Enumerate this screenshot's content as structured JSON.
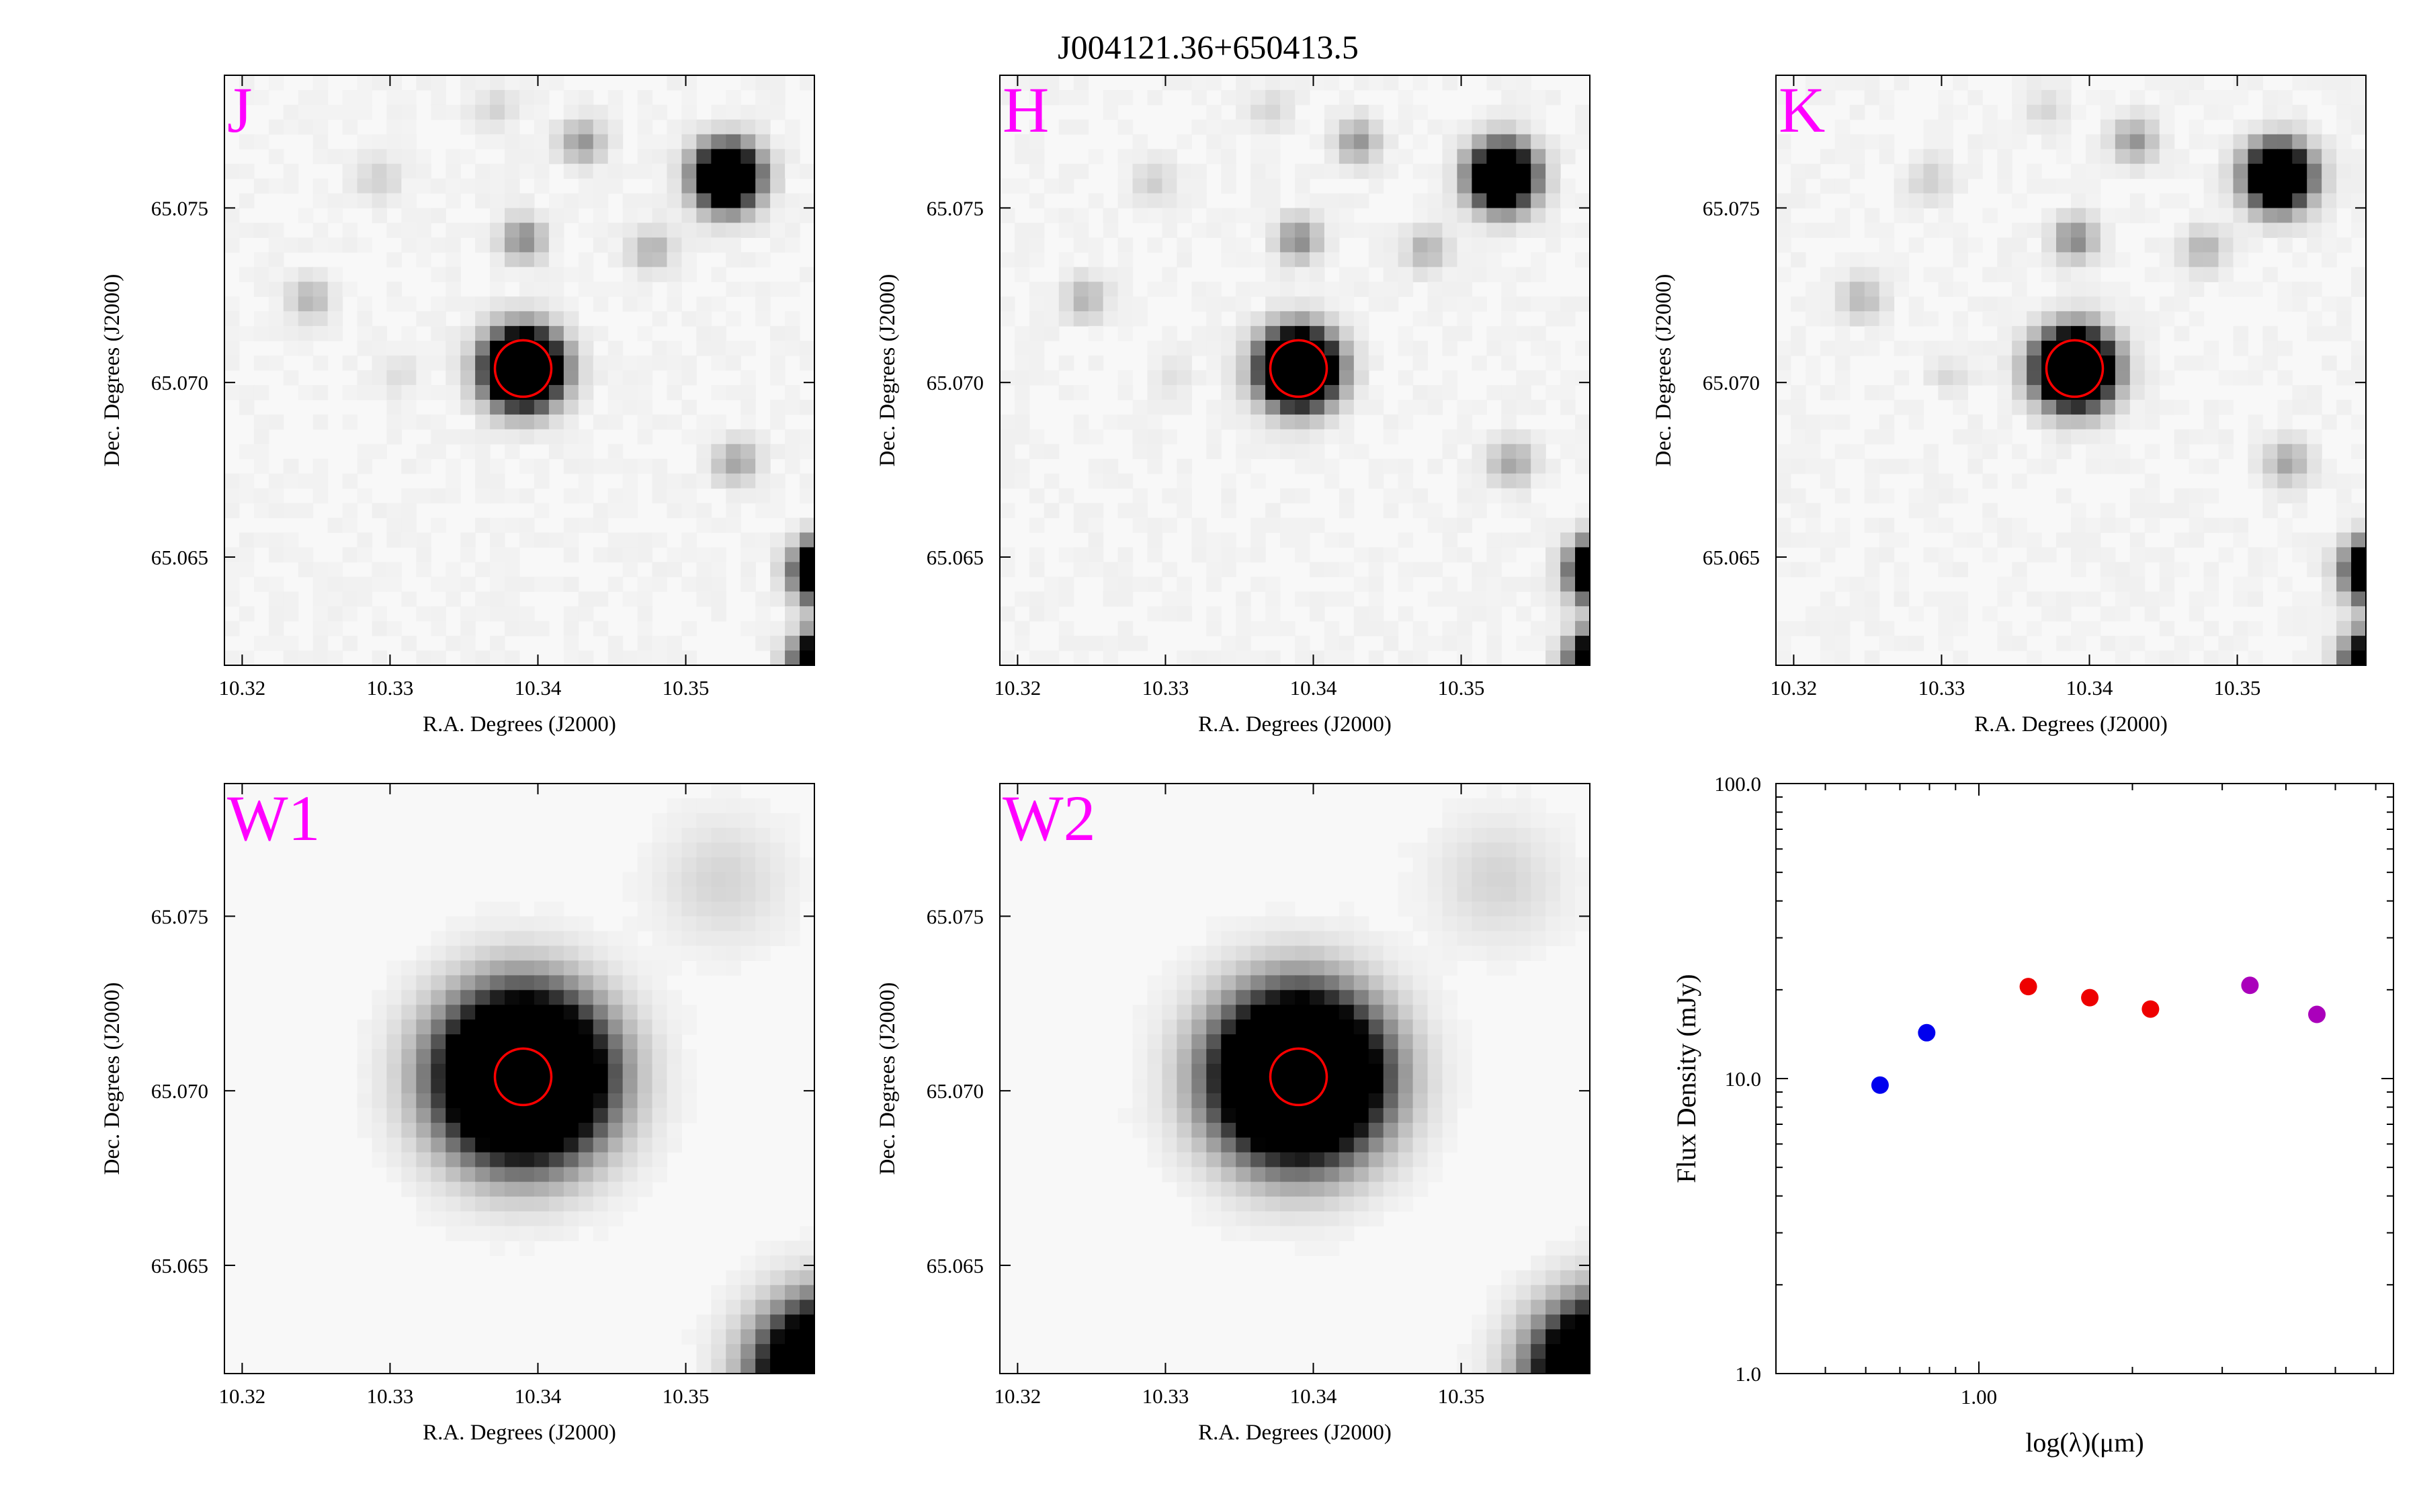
{
  "figure_title": "J004121.36+650413.5",
  "colors": {
    "band_label": "#ff00ff",
    "aperture": "#ff0000"
  },
  "chart_data": [
    {
      "type": "heatmap",
      "panel": "J",
      "band_label": "J",
      "xlabel": "R.A. Degrees (J2000)",
      "ylabel": "Dec. Degrees (J2000)",
      "xlim": [
        10.3188,
        10.3587
      ],
      "ylim": [
        65.0619,
        65.0788
      ],
      "xticks": [
        "10.32",
        "10.33",
        "10.34",
        "10.35"
      ],
      "yticks": [
        "65.065",
        "65.070",
        "65.075"
      ],
      "colormap": "gray_r",
      "aperture": {
        "ra": 10.339,
        "dec": 65.0704
      }
    },
    {
      "type": "heatmap",
      "panel": "H",
      "band_label": "H",
      "xlabel": "R.A. Degrees (J2000)",
      "ylabel": "Dec. Degrees (J2000)",
      "xlim": [
        10.3188,
        10.3587
      ],
      "ylim": [
        65.0619,
        65.0788
      ],
      "xticks": [
        "10.32",
        "10.33",
        "10.34",
        "10.35"
      ],
      "yticks": [
        "65.065",
        "65.070",
        "65.075"
      ],
      "colormap": "gray_r",
      "aperture": {
        "ra": 10.339,
        "dec": 65.0704
      }
    },
    {
      "type": "heatmap",
      "panel": "K",
      "band_label": "K",
      "xlabel": "R.A. Degrees (J2000)",
      "ylabel": "Dec. Degrees (J2000)",
      "xlim": [
        10.3188,
        10.3587
      ],
      "ylim": [
        65.0619,
        65.0788
      ],
      "xticks": [
        "10.32",
        "10.33",
        "10.34",
        "10.35"
      ],
      "yticks": [
        "65.065",
        "65.070",
        "65.075"
      ],
      "colormap": "gray_r",
      "aperture": {
        "ra": 10.339,
        "dec": 65.0704
      }
    },
    {
      "type": "heatmap",
      "panel": "W1",
      "band_label": "W1",
      "xlabel": "R.A. Degrees (J2000)",
      "ylabel": "Dec. Degrees (J2000)",
      "xlim": [
        10.3188,
        10.3587
      ],
      "ylim": [
        65.0619,
        65.0788
      ],
      "xticks": [
        "10.32",
        "10.33",
        "10.34",
        "10.35"
      ],
      "yticks": [
        "65.065",
        "65.070",
        "65.075"
      ],
      "colormap": "gray_r",
      "aperture": {
        "ra": 10.339,
        "dec": 65.0704
      }
    },
    {
      "type": "heatmap",
      "panel": "W2",
      "band_label": "W2",
      "xlabel": "R.A. Degrees (J2000)",
      "ylabel": "Dec. Degrees (J2000)",
      "xlim": [
        10.3188,
        10.3587
      ],
      "ylim": [
        65.0619,
        65.0788
      ],
      "xticks": [
        "10.32",
        "10.33",
        "10.34",
        "10.35"
      ],
      "yticks": [
        "65.065",
        "65.070",
        "65.075"
      ],
      "colormap": "gray_r",
      "aperture": {
        "ra": 10.339,
        "dec": 65.0704
      }
    },
    {
      "type": "scatter",
      "panel": "SED",
      "xlabel": "log(λ)(μm)",
      "ylabel": "Flux Density (mJy)",
      "xscale": "log",
      "yscale": "log",
      "xlim": [
        0.4,
        6.5
      ],
      "ylim": [
        1.0,
        100.0
      ],
      "xticks": [
        "1.00"
      ],
      "yticks": [
        "1.0",
        "10.0",
        "100.0"
      ],
      "points": [
        {
          "x": 0.64,
          "y": 9.5,
          "color": "#0000ee"
        },
        {
          "x": 0.79,
          "y": 14.3,
          "color": "#0000ee"
        },
        {
          "x": 1.25,
          "y": 20.5,
          "color": "#ee0000"
        },
        {
          "x": 1.65,
          "y": 18.8,
          "color": "#ee0000"
        },
        {
          "x": 2.17,
          "y": 17.2,
          "color": "#ee0000"
        },
        {
          "x": 3.4,
          "y": 20.7,
          "color": "#aa00bb"
        },
        {
          "x": 4.6,
          "y": 16.5,
          "color": "#aa00bb"
        }
      ]
    }
  ],
  "sources": [
    {
      "ra": 10.339,
      "dec": 65.0704,
      "sigma": 1.6,
      "peak": 3.0
    },
    {
      "ra": 10.3528,
      "dec": 65.0759,
      "sigma": 1.4,
      "peak": 2.2
    },
    {
      "ra": 10.339,
      "dec": 65.0741,
      "sigma": 1.0,
      "peak": 0.45
    },
    {
      "ra": 10.343,
      "dec": 65.0769,
      "sigma": 1.0,
      "peak": 0.38
    },
    {
      "ra": 10.3477,
      "dec": 65.0738,
      "sigma": 1.0,
      "peak": 0.28
    },
    {
      "ra": 10.3246,
      "dec": 65.0724,
      "sigma": 1.0,
      "peak": 0.26
    },
    {
      "ra": 10.3534,
      "dec": 65.0677,
      "sigma": 1.0,
      "peak": 0.34
    },
    {
      "ra": 10.3292,
      "dec": 65.0758,
      "sigma": 1.0,
      "peak": 0.15
    },
    {
      "ra": 10.3371,
      "dec": 65.0778,
      "sigma": 1.0,
      "peak": 0.12
    },
    {
      "ra": 10.3305,
      "dec": 65.0702,
      "sigma": 0.9,
      "peak": 0.1
    },
    {
      "ra": 10.3595,
      "dec": 65.0646,
      "sigma": 1.3,
      "peak": 2.4
    },
    {
      "ra": 10.3595,
      "dec": 65.062,
      "sigma": 1.3,
      "peak": 2.4
    }
  ],
  "wise_sources": [
    {
      "ra": 10.339,
      "dec": 65.0704,
      "sigma": 3.5,
      "peak": 3.2
    },
    {
      "ra": 10.3525,
      "dec": 65.076,
      "sigma": 2.8,
      "peak": 0.14
    },
    {
      "ra": 10.36,
      "dec": 65.0618,
      "sigma": 3.0,
      "peak": 3.2
    }
  ]
}
